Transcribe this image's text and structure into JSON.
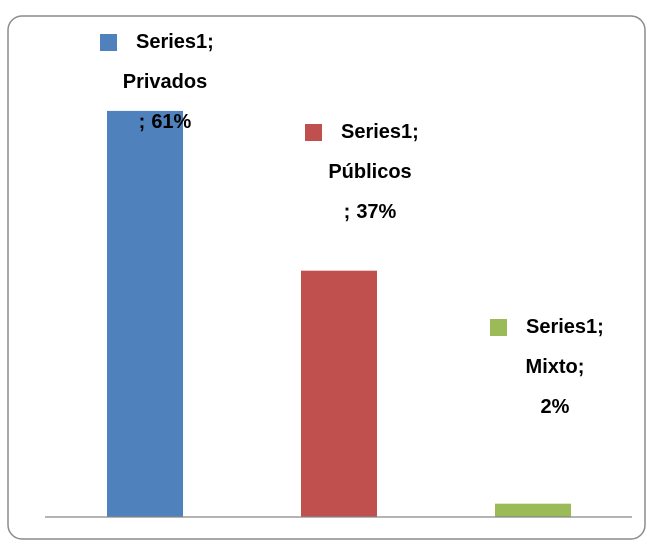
{
  "chart_data": {
    "type": "bar",
    "categories": [
      "Privados",
      "Públicos",
      "Mixto"
    ],
    "series": [
      {
        "name": "Series1",
        "values": [
          61,
          37,
          2
        ],
        "value_labels": [
          "61%",
          "37%",
          "2%"
        ],
        "colors": [
          "#4f81bd",
          "#c0504d",
          "#9bbb59"
        ]
      }
    ],
    "label_separator": ";",
    "ylim": [
      0,
      70
    ]
  }
}
